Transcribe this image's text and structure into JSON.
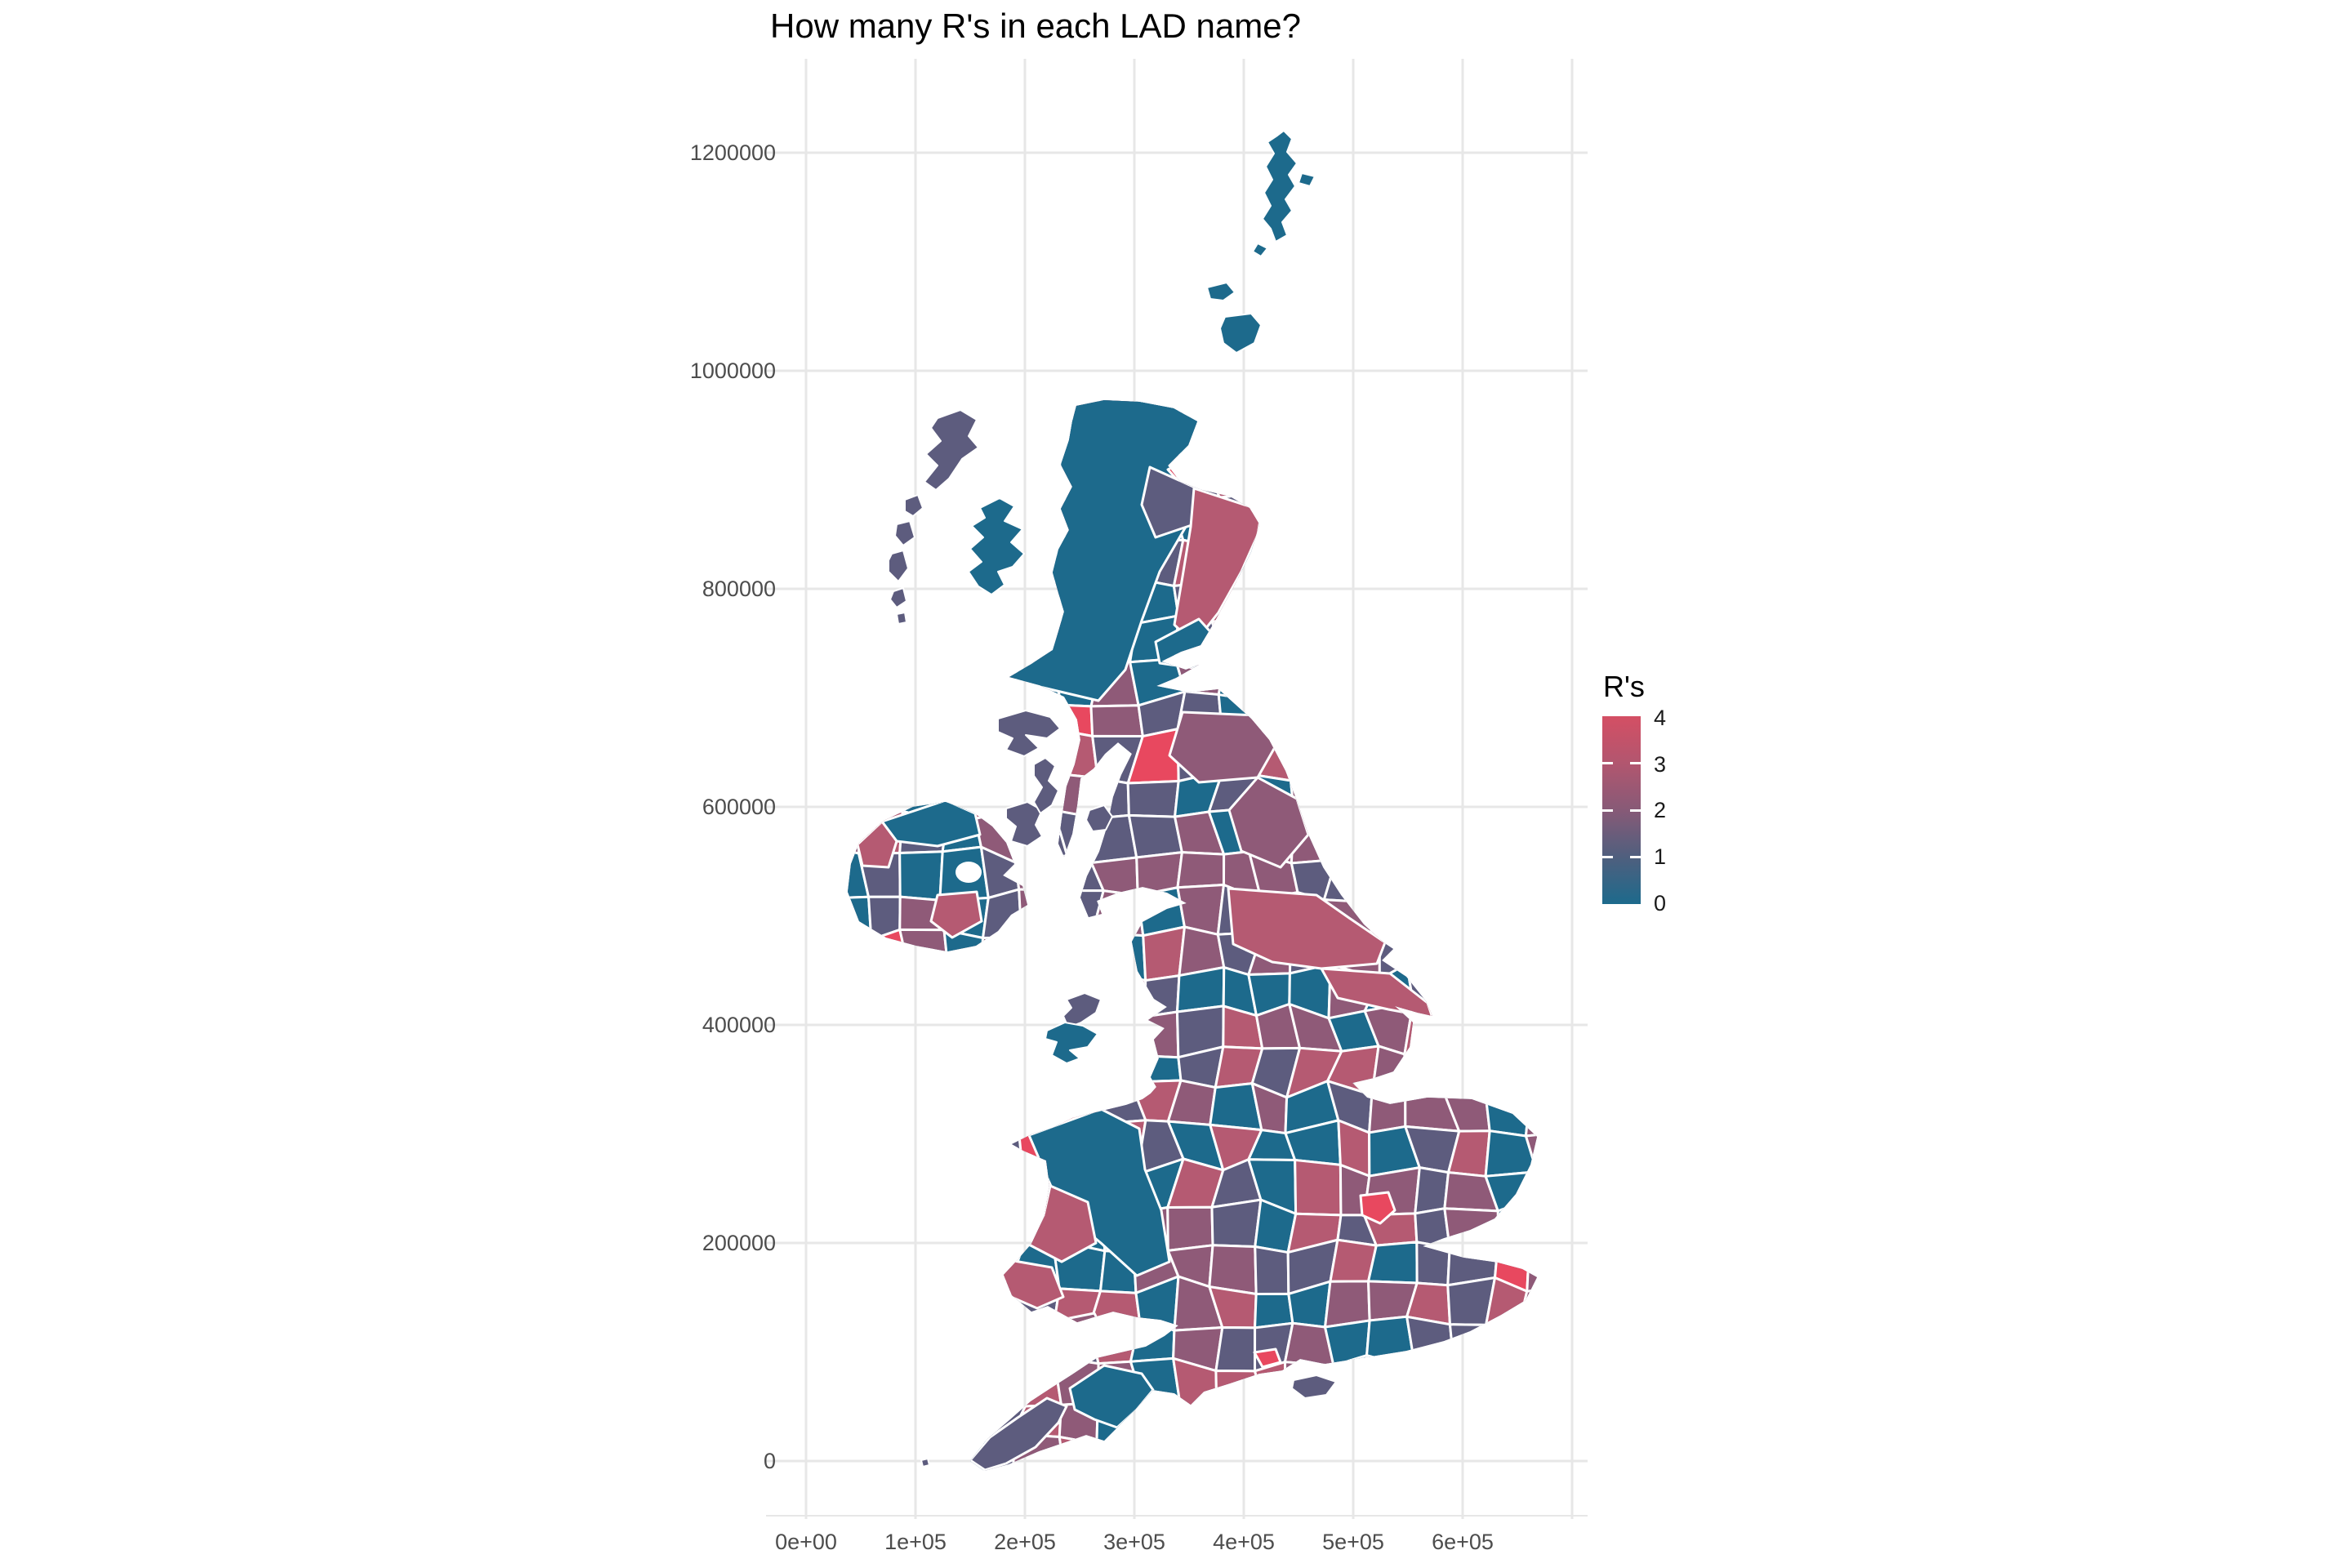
{
  "title": "How many R's in each LAD name?",
  "chart_data": {
    "type": "choropleth_map",
    "title": "How many R's in each LAD name?",
    "description": "Map of United Kingdom Local Authority Districts (LADs), each district filled by the number of letter R's occurring in its name",
    "projection": "OSGB easting/northing (metres), equal-scale axes",
    "x_axis": {
      "tick_labels": [
        "0e+00",
        "1e+05",
        "2e+05",
        "3e+05",
        "4e+05",
        "5e+05",
        "6e+05"
      ],
      "tick_values": [
        0,
        100000,
        200000,
        300000,
        400000,
        500000,
        600000
      ],
      "grid": true
    },
    "y_axis": {
      "tick_labels": [
        "1200000",
        "1000000",
        "800000",
        "600000",
        "400000",
        "200000",
        "0"
      ],
      "tick_values": [
        1200000,
        1000000,
        800000,
        600000,
        400000,
        200000,
        0
      ],
      "grid": true
    },
    "legend": {
      "title": "R's",
      "tick_labels": [
        "4",
        "3",
        "2",
        "1",
        "0"
      ],
      "min": 0,
      "max": 4,
      "position": "right"
    },
    "colors": {
      "value_scale": [
        "#1d6a8c",
        "#5d5c7e",
        "#8f5a78",
        "#b55a72",
        "#e8485f"
      ],
      "legend_gradient": [
        "#d44f64",
        "#b2566f",
        "#875a77",
        "#4f5f7e",
        "#1d6a8c"
      ],
      "gridline": "#e7e7e7",
      "axis_text": "#4d4d4d",
      "background": "#ffffff",
      "region_border": "#ffffff"
    },
    "visible_features": [
      "Great Britain mainland mosaic of districts",
      "Northern Ireland districts",
      "Shetland and Orkney islands (0 R's, teal)",
      "Outer Hebrides chain (slate)",
      "Large teal Highland region in northern Scotland",
      "Large rose North Yorkshire / East Riding regions",
      "Large teal Gwynedd/Powys block in Wales",
      "Dense small districts around London",
      "Bright red (4 R's) district north-west of London and on the south coast"
    ]
  }
}
